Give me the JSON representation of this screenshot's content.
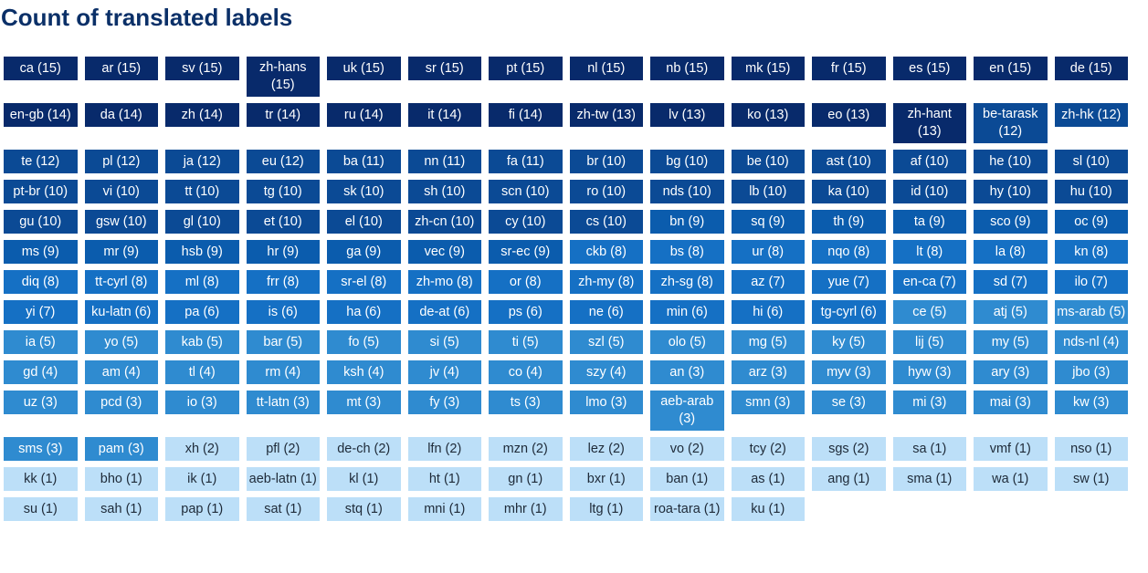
{
  "chart_data": {
    "type": "table",
    "title": "Count of translated labels",
    "items": [
      {
        "label": "ca",
        "value": 15
      },
      {
        "label": "ar",
        "value": 15
      },
      {
        "label": "sv",
        "value": 15
      },
      {
        "label": "zh-hans",
        "value": 15
      },
      {
        "label": "uk",
        "value": 15
      },
      {
        "label": "sr",
        "value": 15
      },
      {
        "label": "pt",
        "value": 15
      },
      {
        "label": "nl",
        "value": 15
      },
      {
        "label": "nb",
        "value": 15
      },
      {
        "label": "mk",
        "value": 15
      },
      {
        "label": "fr",
        "value": 15
      },
      {
        "label": "es",
        "value": 15
      },
      {
        "label": "en",
        "value": 15
      },
      {
        "label": "de",
        "value": 15
      },
      {
        "label": "en-gb",
        "value": 14
      },
      {
        "label": "da",
        "value": 14
      },
      {
        "label": "zh",
        "value": 14
      },
      {
        "label": "tr",
        "value": 14
      },
      {
        "label": "ru",
        "value": 14
      },
      {
        "label": "it",
        "value": 14
      },
      {
        "label": "fi",
        "value": 14
      },
      {
        "label": "zh-tw",
        "value": 13
      },
      {
        "label": "lv",
        "value": 13
      },
      {
        "label": "ko",
        "value": 13
      },
      {
        "label": "eo",
        "value": 13
      },
      {
        "label": "zh-hant",
        "value": 13
      },
      {
        "label": "be-tarask",
        "value": 12
      },
      {
        "label": "zh-hk",
        "value": 12
      },
      {
        "label": "te",
        "value": 12
      },
      {
        "label": "pl",
        "value": 12
      },
      {
        "label": "ja",
        "value": 12
      },
      {
        "label": "eu",
        "value": 12
      },
      {
        "label": "ba",
        "value": 11
      },
      {
        "label": "nn",
        "value": 11
      },
      {
        "label": "fa",
        "value": 11
      },
      {
        "label": "br",
        "value": 10
      },
      {
        "label": "bg",
        "value": 10
      },
      {
        "label": "be",
        "value": 10
      },
      {
        "label": "ast",
        "value": 10
      },
      {
        "label": "af",
        "value": 10
      },
      {
        "label": "he",
        "value": 10
      },
      {
        "label": "sl",
        "value": 10
      },
      {
        "label": "pt-br",
        "value": 10
      },
      {
        "label": "vi",
        "value": 10
      },
      {
        "label": "tt",
        "value": 10
      },
      {
        "label": "tg",
        "value": 10
      },
      {
        "label": "sk",
        "value": 10
      },
      {
        "label": "sh",
        "value": 10
      },
      {
        "label": "scn",
        "value": 10
      },
      {
        "label": "ro",
        "value": 10
      },
      {
        "label": "nds",
        "value": 10
      },
      {
        "label": "lb",
        "value": 10
      },
      {
        "label": "ka",
        "value": 10
      },
      {
        "label": "id",
        "value": 10
      },
      {
        "label": "hy",
        "value": 10
      },
      {
        "label": "hu",
        "value": 10
      },
      {
        "label": "gu",
        "value": 10
      },
      {
        "label": "gsw",
        "value": 10
      },
      {
        "label": "gl",
        "value": 10
      },
      {
        "label": "et",
        "value": 10
      },
      {
        "label": "el",
        "value": 10
      },
      {
        "label": "zh-cn",
        "value": 10
      },
      {
        "label": "cy",
        "value": 10
      },
      {
        "label": "cs",
        "value": 10
      },
      {
        "label": "bn",
        "value": 9
      },
      {
        "label": "sq",
        "value": 9
      },
      {
        "label": "th",
        "value": 9
      },
      {
        "label": "ta",
        "value": 9
      },
      {
        "label": "sco",
        "value": 9
      },
      {
        "label": "oc",
        "value": 9
      },
      {
        "label": "ms",
        "value": 9
      },
      {
        "label": "mr",
        "value": 9
      },
      {
        "label": "hsb",
        "value": 9
      },
      {
        "label": "hr",
        "value": 9
      },
      {
        "label": "ga",
        "value": 9
      },
      {
        "label": "vec",
        "value": 9
      },
      {
        "label": "sr-ec",
        "value": 9
      },
      {
        "label": "ckb",
        "value": 8
      },
      {
        "label": "bs",
        "value": 8
      },
      {
        "label": "ur",
        "value": 8
      },
      {
        "label": "nqo",
        "value": 8
      },
      {
        "label": "lt",
        "value": 8
      },
      {
        "label": "la",
        "value": 8
      },
      {
        "label": "kn",
        "value": 8
      },
      {
        "label": "diq",
        "value": 8
      },
      {
        "label": "tt-cyrl",
        "value": 8
      },
      {
        "label": "ml",
        "value": 8
      },
      {
        "label": "frr",
        "value": 8
      },
      {
        "label": "sr-el",
        "value": 8
      },
      {
        "label": "zh-mo",
        "value": 8
      },
      {
        "label": "or",
        "value": 8
      },
      {
        "label": "zh-my",
        "value": 8
      },
      {
        "label": "zh-sg",
        "value": 8
      },
      {
        "label": "az",
        "value": 7
      },
      {
        "label": "yue",
        "value": 7
      },
      {
        "label": "en-ca",
        "value": 7
      },
      {
        "label": "sd",
        "value": 7
      },
      {
        "label": "ilo",
        "value": 7
      },
      {
        "label": "yi",
        "value": 7
      },
      {
        "label": "ku-latn",
        "value": 6
      },
      {
        "label": "pa",
        "value": 6
      },
      {
        "label": "is",
        "value": 6
      },
      {
        "label": "ha",
        "value": 6
      },
      {
        "label": "de-at",
        "value": 6
      },
      {
        "label": "ps",
        "value": 6
      },
      {
        "label": "ne",
        "value": 6
      },
      {
        "label": "min",
        "value": 6
      },
      {
        "label": "hi",
        "value": 6
      },
      {
        "label": "tg-cyrl",
        "value": 6
      },
      {
        "label": "ce",
        "value": 5
      },
      {
        "label": "atj",
        "value": 5
      },
      {
        "label": "ms-arab",
        "value": 5
      },
      {
        "label": "ia",
        "value": 5
      },
      {
        "label": "yo",
        "value": 5
      },
      {
        "label": "kab",
        "value": 5
      },
      {
        "label": "bar",
        "value": 5
      },
      {
        "label": "fo",
        "value": 5
      },
      {
        "label": "si",
        "value": 5
      },
      {
        "label": "ti",
        "value": 5
      },
      {
        "label": "szl",
        "value": 5
      },
      {
        "label": "olo",
        "value": 5
      },
      {
        "label": "mg",
        "value": 5
      },
      {
        "label": "ky",
        "value": 5
      },
      {
        "label": "lij",
        "value": 5
      },
      {
        "label": "my",
        "value": 5
      },
      {
        "label": "nds-nl",
        "value": 4
      },
      {
        "label": "gd",
        "value": 4
      },
      {
        "label": "am",
        "value": 4
      },
      {
        "label": "tl",
        "value": 4
      },
      {
        "label": "rm",
        "value": 4
      },
      {
        "label": "ksh",
        "value": 4
      },
      {
        "label": "jv",
        "value": 4
      },
      {
        "label": "co",
        "value": 4
      },
      {
        "label": "szy",
        "value": 4
      },
      {
        "label": "an",
        "value": 3
      },
      {
        "label": "arz",
        "value": 3
      },
      {
        "label": "myv",
        "value": 3
      },
      {
        "label": "hyw",
        "value": 3
      },
      {
        "label": "ary",
        "value": 3
      },
      {
        "label": "jbo",
        "value": 3
      },
      {
        "label": "uz",
        "value": 3
      },
      {
        "label": "pcd",
        "value": 3
      },
      {
        "label": "io",
        "value": 3
      },
      {
        "label": "tt-latn",
        "value": 3
      },
      {
        "label": "mt",
        "value": 3
      },
      {
        "label": "fy",
        "value": 3
      },
      {
        "label": "ts",
        "value": 3
      },
      {
        "label": "lmo",
        "value": 3
      },
      {
        "label": "aeb-arab",
        "value": 3
      },
      {
        "label": "smn",
        "value": 3
      },
      {
        "label": "se",
        "value": 3
      },
      {
        "label": "mi",
        "value": 3
      },
      {
        "label": "mai",
        "value": 3
      },
      {
        "label": "kw",
        "value": 3
      },
      {
        "label": "sms",
        "value": 3
      },
      {
        "label": "pam",
        "value": 3
      },
      {
        "label": "xh",
        "value": 2
      },
      {
        "label": "pfl",
        "value": 2
      },
      {
        "label": "de-ch",
        "value": 2
      },
      {
        "label": "lfn",
        "value": 2
      },
      {
        "label": "mzn",
        "value": 2
      },
      {
        "label": "lez",
        "value": 2
      },
      {
        "label": "vo",
        "value": 2
      },
      {
        "label": "tcy",
        "value": 2
      },
      {
        "label": "sgs",
        "value": 2
      },
      {
        "label": "sa",
        "value": 1
      },
      {
        "label": "vmf",
        "value": 1
      },
      {
        "label": "nso",
        "value": 1
      },
      {
        "label": "kk",
        "value": 1
      },
      {
        "label": "bho",
        "value": 1
      },
      {
        "label": "ik",
        "value": 1
      },
      {
        "label": "aeb-latn",
        "value": 1
      },
      {
        "label": "kl",
        "value": 1
      },
      {
        "label": "ht",
        "value": 1
      },
      {
        "label": "gn",
        "value": 1
      },
      {
        "label": "bxr",
        "value": 1
      },
      {
        "label": "ban",
        "value": 1
      },
      {
        "label": "as",
        "value": 1
      },
      {
        "label": "ang",
        "value": 1
      },
      {
        "label": "sma",
        "value": 1
      },
      {
        "label": "wa",
        "value": 1
      },
      {
        "label": "sw",
        "value": 1
      },
      {
        "label": "su",
        "value": 1
      },
      {
        "label": "sah",
        "value": 1
      },
      {
        "label": "pap",
        "value": 1
      },
      {
        "label": "sat",
        "value": 1
      },
      {
        "label": "stq",
        "value": 1
      },
      {
        "label": "mni",
        "value": 1
      },
      {
        "label": "mhr",
        "value": 1
      },
      {
        "label": "ltg",
        "value": 1
      },
      {
        "label": "roa-tara",
        "value": 1
      },
      {
        "label": "ku",
        "value": 1
      }
    ]
  },
  "colors": {
    "title": "#0b3068",
    "scale": [
      {
        "min": 13,
        "max": 15,
        "bg": "#082a6b",
        "fg": "#ffffff"
      },
      {
        "min": 10,
        "max": 12,
        "bg": "#0b4a95",
        "fg": "#ffffff"
      },
      {
        "min": 9,
        "max": 9,
        "bg": "#0b5cad",
        "fg": "#ffffff"
      },
      {
        "min": 6,
        "max": 8,
        "bg": "#1570c4",
        "fg": "#ffffff"
      },
      {
        "min": 3,
        "max": 5,
        "bg": "#2f8bd0",
        "fg": "#ffffff"
      },
      {
        "min": 1,
        "max": 2,
        "bg": "#bcdff8",
        "fg": "#1e2a38"
      }
    ]
  }
}
